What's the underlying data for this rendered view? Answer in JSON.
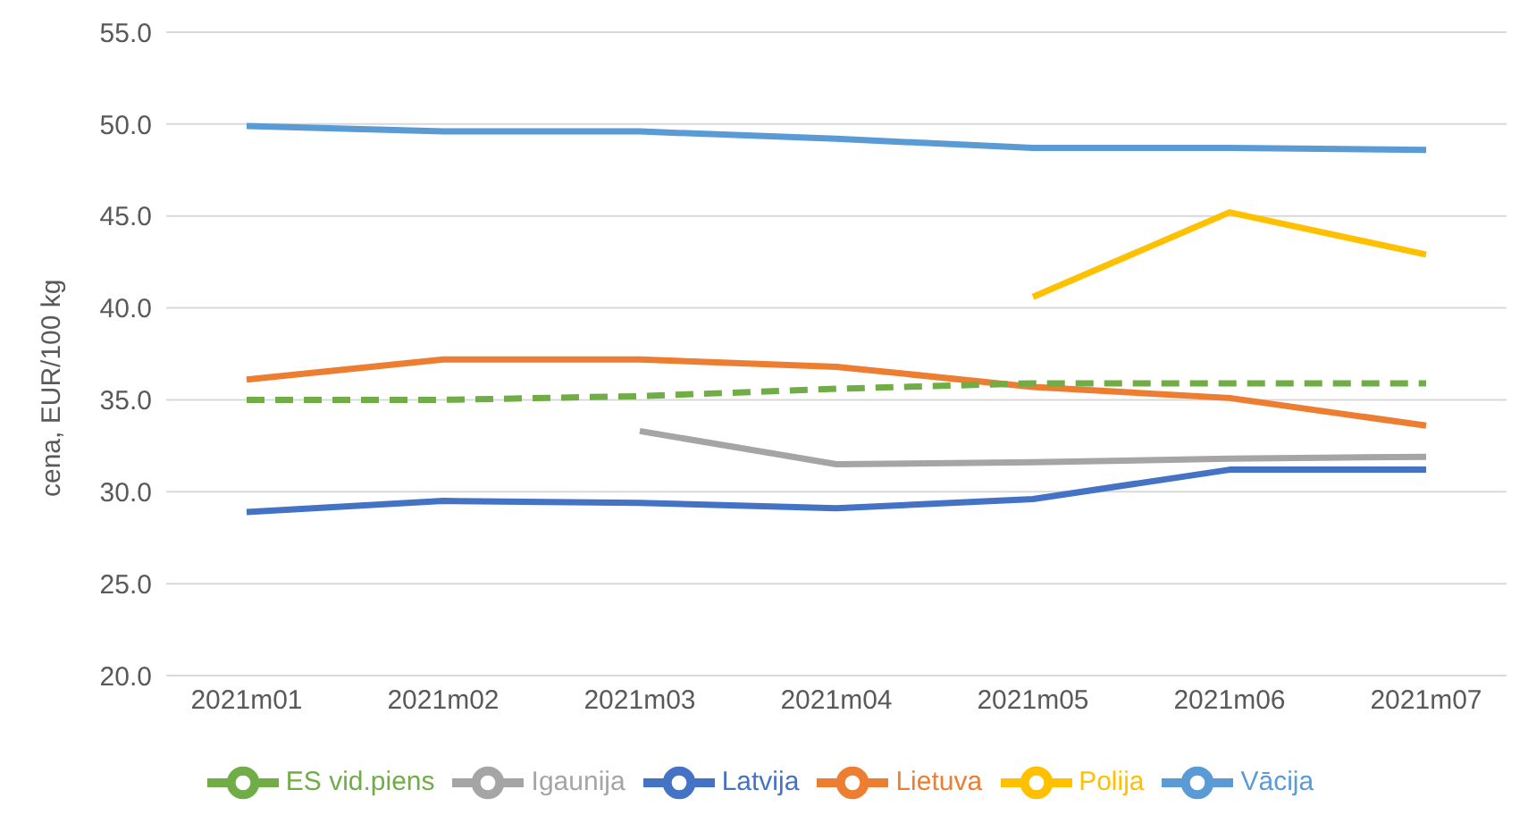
{
  "chart_data": {
    "type": "line",
    "ylabel": "cena, EUR/100 kg",
    "categories": [
      "2021m01",
      "2021m02",
      "2021m03",
      "2021m04",
      "2021m05",
      "2021m06",
      "2021m07"
    ],
    "series": [
      {
        "name": "Latvija",
        "color": "#4472c4",
        "values": [
          28.9,
          29.5,
          29.4,
          29.1,
          29.6,
          31.2,
          31.2
        ]
      },
      {
        "name": "Lietuva",
        "color": "#ed7d31",
        "values": [
          36.1,
          37.2,
          37.2,
          36.8,
          35.7,
          35.1,
          33.6
        ]
      },
      {
        "name": "Igaunija",
        "color": "#a5a5a5",
        "values": [
          null,
          null,
          33.3,
          31.5,
          31.6,
          31.8,
          31.9
        ]
      },
      {
        "name": "Polija",
        "color": "#ffc000",
        "values": [
          null,
          null,
          null,
          null,
          40.6,
          45.2,
          42.9
        ]
      },
      {
        "name": "Vācija",
        "color": "#5b9bd5",
        "values": [
          49.9,
          49.6,
          49.6,
          49.2,
          48.7,
          48.7,
          48.6
        ]
      },
      {
        "name": "ES vid.piens",
        "color": "#70ad47",
        "line_style": "dashed",
        "values": [
          35.0,
          35.0,
          35.2,
          35.6,
          35.9,
          35.9,
          35.9
        ]
      }
    ],
    "ylim": [
      20,
      55
    ],
    "yticks": [
      {
        "value": 20,
        "label": "20.0"
      },
      {
        "value": 25,
        "label": "25.0"
      },
      {
        "value": 30,
        "label": "30.0"
      },
      {
        "value": 35,
        "label": "35.0"
      },
      {
        "value": 40,
        "label": "40.0"
      },
      {
        "value": 45,
        "label": "45.0"
      },
      {
        "value": 50,
        "label": "50.0"
      },
      {
        "value": 55,
        "label": "55.0"
      }
    ],
    "grid": "y",
    "legend": "bottom",
    "marker": "none",
    "line_style": "solid"
  }
}
